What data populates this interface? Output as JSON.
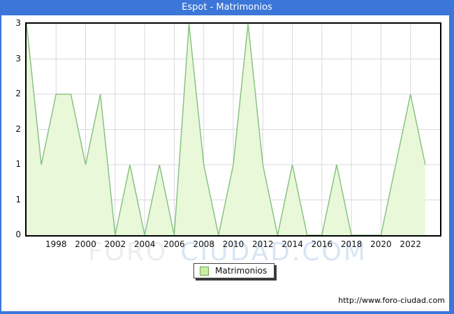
{
  "title": "Espot - Matrimonios",
  "legend": {
    "label": "Matrimonios"
  },
  "watermark": {
    "part1": "FORO",
    "part2": "CIUDAD.COM"
  },
  "footer": {
    "url_text": "http://www.foro-ciudad.com"
  },
  "colors": {
    "titlebar_bg": "#3b76d8",
    "area_fill": "#e9f8d8",
    "area_line": "#8ac383",
    "grid": "#d9d9e0",
    "plot_border": "#000000",
    "legend_swatch": "#c9f0a2",
    "watermark_gray": "#ededed",
    "watermark_blue": "#d9e5f5"
  },
  "chart_data": {
    "type": "area",
    "title": "Espot - Matrimonios",
    "x": [
      1996,
      1997,
      1998,
      1999,
      2000,
      2001,
      2002,
      2003,
      2004,
      2005,
      2006,
      2007,
      2008,
      2009,
      2010,
      2011,
      2012,
      2013,
      2014,
      2015,
      2016,
      2017,
      2018,
      2019,
      2020,
      2021,
      2022,
      2023
    ],
    "series": [
      {
        "name": "Matrimonios",
        "values": [
          3,
          1,
          2,
          2,
          1,
          2,
          0,
          1,
          0,
          1,
          0,
          3,
          1,
          0,
          1,
          3,
          1,
          0,
          1,
          0,
          0,
          1,
          0,
          0,
          0,
          1,
          2,
          1
        ]
      }
    ],
    "x_axis": {
      "tick_years": [
        1998,
        2000,
        2002,
        2004,
        2006,
        2008,
        2010,
        2012,
        2014,
        2016,
        2018,
        2020,
        2022
      ],
      "range": [
        1996,
        2024
      ]
    },
    "y_axis": {
      "tick_labels": [
        "3",
        "3",
        "2",
        "2",
        "1",
        "1",
        "0"
      ],
      "tick_values": [
        3,
        2.5,
        2,
        1.5,
        1,
        0.5,
        0
      ],
      "range": [
        0,
        3
      ]
    },
    "grid": true,
    "legend_position": "bottom-center"
  }
}
